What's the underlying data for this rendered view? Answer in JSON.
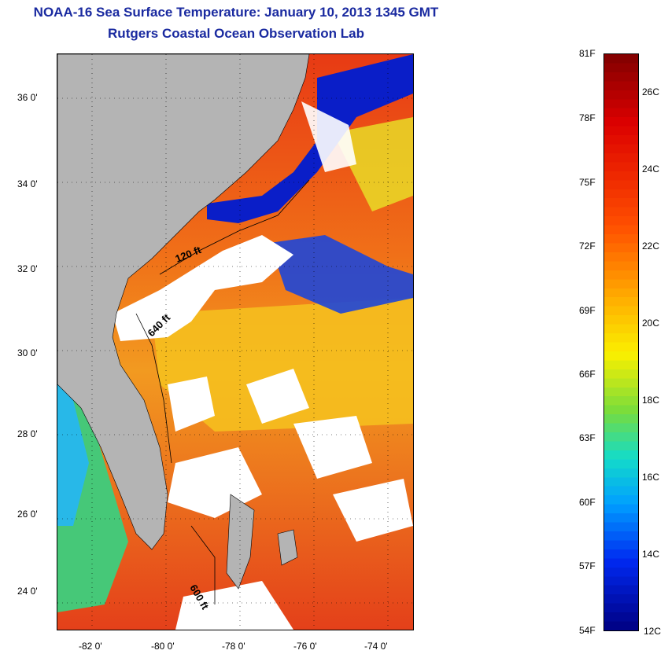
{
  "header": {
    "title": "NOAA-16 Sea Surface Temperature:  January 10, 2013 1345 GMT",
    "subtitle": "Rutgers Coastal Ocean Observation Lab"
  },
  "map": {
    "lat_labels": [
      "36 0'",
      "34 0'",
      "32 0'",
      "30 0'",
      "28 0'",
      "26 0'",
      "24 0'"
    ],
    "lon_labels": [
      "-82 0'",
      "-80 0'",
      "-78 0'",
      "-76 0'",
      "-74 0'"
    ],
    "contour_labels": [
      "120 ft",
      "640 ft",
      "600 ft"
    ],
    "colors": {
      "land": "#b4b4b4",
      "cloud": "#ffffff",
      "warm": "#e03a10",
      "cold": "#0018c8"
    }
  },
  "colorbar": {
    "fahrenheit_labels": [
      "81F",
      "78F",
      "75F",
      "72F",
      "69F",
      "66F",
      "63F",
      "60F",
      "57F",
      "54F"
    ],
    "celsius_labels": [
      "26C",
      "24C",
      "22C",
      "20C",
      "18C",
      "16C",
      "14C",
      "12C"
    ]
  }
}
